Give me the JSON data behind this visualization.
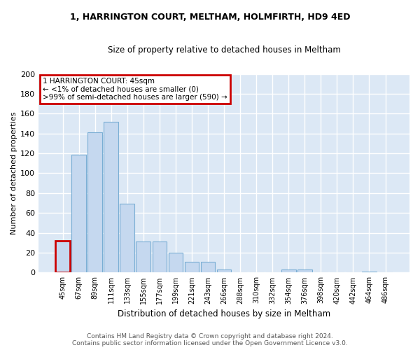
{
  "title_line1": "1, HARRINGTON COURT, MELTHAM, HOLMFIRTH, HD9 4ED",
  "title_line2": "Size of property relative to detached houses in Meltham",
  "xlabel": "Distribution of detached houses by size in Meltham",
  "ylabel": "Number of detached properties",
  "categories": [
    "45sqm",
    "67sqm",
    "89sqm",
    "111sqm",
    "133sqm",
    "155sqm",
    "177sqm",
    "199sqm",
    "221sqm",
    "243sqm",
    "266sqm",
    "288sqm",
    "310sqm",
    "332sqm",
    "354sqm",
    "376sqm",
    "398sqm",
    "420sqm",
    "442sqm",
    "464sqm",
    "486sqm"
  ],
  "values": [
    32,
    119,
    141,
    152,
    69,
    31,
    31,
    20,
    11,
    11,
    3,
    0,
    0,
    0,
    3,
    3,
    0,
    0,
    0,
    1,
    0
  ],
  "bar_color": "#c5d8ef",
  "bar_edge_color": "#7aaed4",
  "highlight_edge_color": "#cc0000",
  "annotation_line1": "1 HARRINGTON COURT: 45sqm",
  "annotation_line2": "← <1% of detached houses are smaller (0)",
  "annotation_line3": ">99% of semi-detached houses are larger (590) →",
  "bg_color": "#dce8f5",
  "fig_bg_color": "#ffffff",
  "grid_color": "#ffffff",
  "ylim": [
    0,
    200
  ],
  "yticks": [
    0,
    20,
    40,
    60,
    80,
    100,
    120,
    140,
    160,
    180,
    200
  ],
  "footer_line1": "Contains HM Land Registry data © Crown copyright and database right 2024.",
  "footer_line2": "Contains public sector information licensed under the Open Government Licence v3.0."
}
